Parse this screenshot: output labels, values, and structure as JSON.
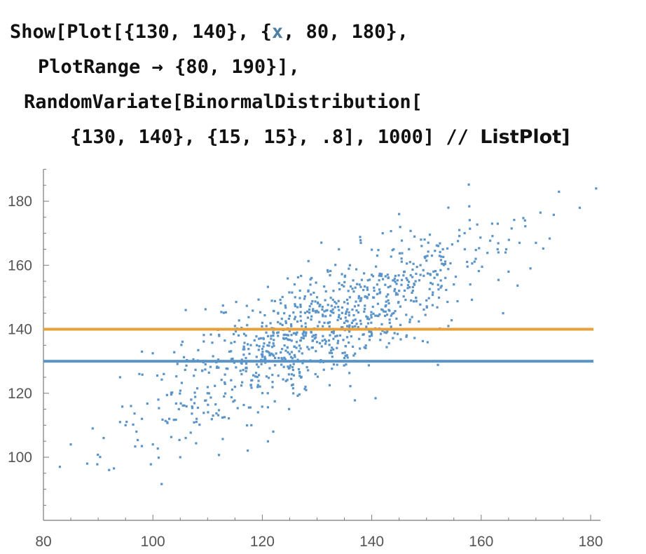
{
  "code": {
    "line1_prefix": "Show[Plot[{130, 140}, {",
    "line1_var": "x",
    "line1_suffix": ", 80, 180},",
    "line2": "PlotRange → {80, 190}],",
    "line3": "RandomVariate[BinormalDistribution[",
    "line4_code": "{130, 140}, {15, 15}, .8], 1000] // ",
    "line4_tail": "ListPlot]"
  },
  "colors": {
    "points": "#5b94c8",
    "line_130": "#5b94c8",
    "line_140": "#e8a13a",
    "axis": "#7a7a7a"
  },
  "chart_data": {
    "type": "scatter",
    "title": "",
    "xlabel": "",
    "ylabel": "",
    "xlim": [
      80,
      180
    ],
    "ylim": [
      80,
      190
    ],
    "xticks": [
      "80",
      "100",
      "120",
      "140",
      "160",
      "180"
    ],
    "yticks": [
      "100",
      "120",
      "140",
      "160",
      "180"
    ],
    "horizontal_lines": [
      {
        "y": 130,
        "color": "#5b94c8"
      },
      {
        "y": 140,
        "color": "#e8a13a"
      }
    ],
    "scatter": {
      "n": 1000,
      "mean": [
        130,
        140
      ],
      "sd": [
        15,
        15
      ],
      "correlation": 0.8,
      "points": [
        [
          83,
          97
        ],
        [
          85,
          104
        ],
        [
          88,
          98
        ],
        [
          89,
          109
        ],
        [
          92,
          96
        ],
        [
          91,
          106
        ],
        [
          94,
          111
        ],
        [
          95,
          110
        ],
        [
          94,
          125
        ],
        [
          96,
          116
        ],
        [
          97,
          108
        ],
        [
          98,
          112
        ],
        [
          98,
          133
        ],
        [
          100,
          104
        ],
        [
          101,
          118
        ],
        [
          102,
          126
        ],
        [
          103,
          112
        ],
        [
          104,
          130
        ],
        [
          105,
          100
        ],
        [
          106,
          106
        ],
        [
          106,
          146
        ],
        [
          107,
          118
        ],
        [
          108,
          112
        ],
        [
          109,
          127
        ],
        [
          110,
          120
        ],
        [
          110,
          140
        ],
        [
          111,
          113
        ],
        [
          112,
          128
        ],
        [
          113,
          119
        ],
        [
          114,
          133
        ],
        [
          115,
          122
        ],
        [
          115,
          141
        ],
        [
          116,
          127
        ],
        [
          117,
          131
        ],
        [
          117,
          138
        ],
        [
          118,
          110
        ],
        [
          118,
          124
        ],
        [
          119,
          129
        ],
        [
          119,
          135
        ],
        [
          120,
          142
        ],
        [
          121,
          133
        ],
        [
          121,
          120
        ],
        [
          122,
          138
        ],
        [
          122,
          108
        ],
        [
          123,
          131
        ],
        [
          124,
          145
        ],
        [
          124,
          137
        ],
        [
          125,
          128
        ],
        [
          126,
          150
        ],
        [
          126,
          140
        ],
        [
          127,
          134
        ],
        [
          127,
          147
        ],
        [
          128,
          139
        ],
        [
          128,
          121
        ],
        [
          129,
          144
        ],
        [
          129,
          156
        ],
        [
          130,
          136
        ],
        [
          130,
          150
        ],
        [
          131,
          147
        ],
        [
          131,
          140
        ],
        [
          132,
          142
        ],
        [
          132,
          158
        ],
        [
          133,
          137
        ],
        [
          133,
          152
        ],
        [
          134,
          146
        ],
        [
          134,
          165
        ],
        [
          135,
          142
        ],
        [
          135,
          131
        ],
        [
          136,
          160
        ],
        [
          136,
          150
        ],
        [
          137,
          153
        ],
        [
          137,
          143
        ],
        [
          138,
          149
        ],
        [
          138,
          167
        ],
        [
          139,
          144
        ],
        [
          140,
          157
        ],
        [
          140,
          138
        ],
        [
          141,
          163
        ],
        [
          141,
          151
        ],
        [
          142,
          146
        ],
        [
          142,
          170
        ],
        [
          143,
          156
        ],
        [
          143,
          149
        ],
        [
          144,
          165
        ],
        [
          145,
          152
        ],
        [
          145,
          176
        ],
        [
          146,
          158
        ],
        [
          147,
          161
        ],
        [
          147,
          143
        ],
        [
          148,
          155
        ],
        [
          149,
          168
        ],
        [
          150,
          149
        ],
        [
          151,
          163
        ],
        [
          152,
          157
        ],
        [
          153,
          165
        ],
        [
          154,
          178
        ],
        [
          154,
          141
        ],
        [
          155,
          154
        ],
        [
          156,
          171
        ],
        [
          157,
          165
        ],
        [
          158,
          154
        ],
        [
          159,
          162
        ],
        [
          160,
          140
        ],
        [
          162,
          173
        ],
        [
          163,
          165
        ],
        [
          164,
          145
        ],
        [
          165,
          158
        ],
        [
          167,
          167
        ],
        [
          168,
          174
        ],
        [
          169,
          159
        ],
        [
          170,
          167
        ],
        [
          181,
          184
        ]
      ]
    }
  }
}
